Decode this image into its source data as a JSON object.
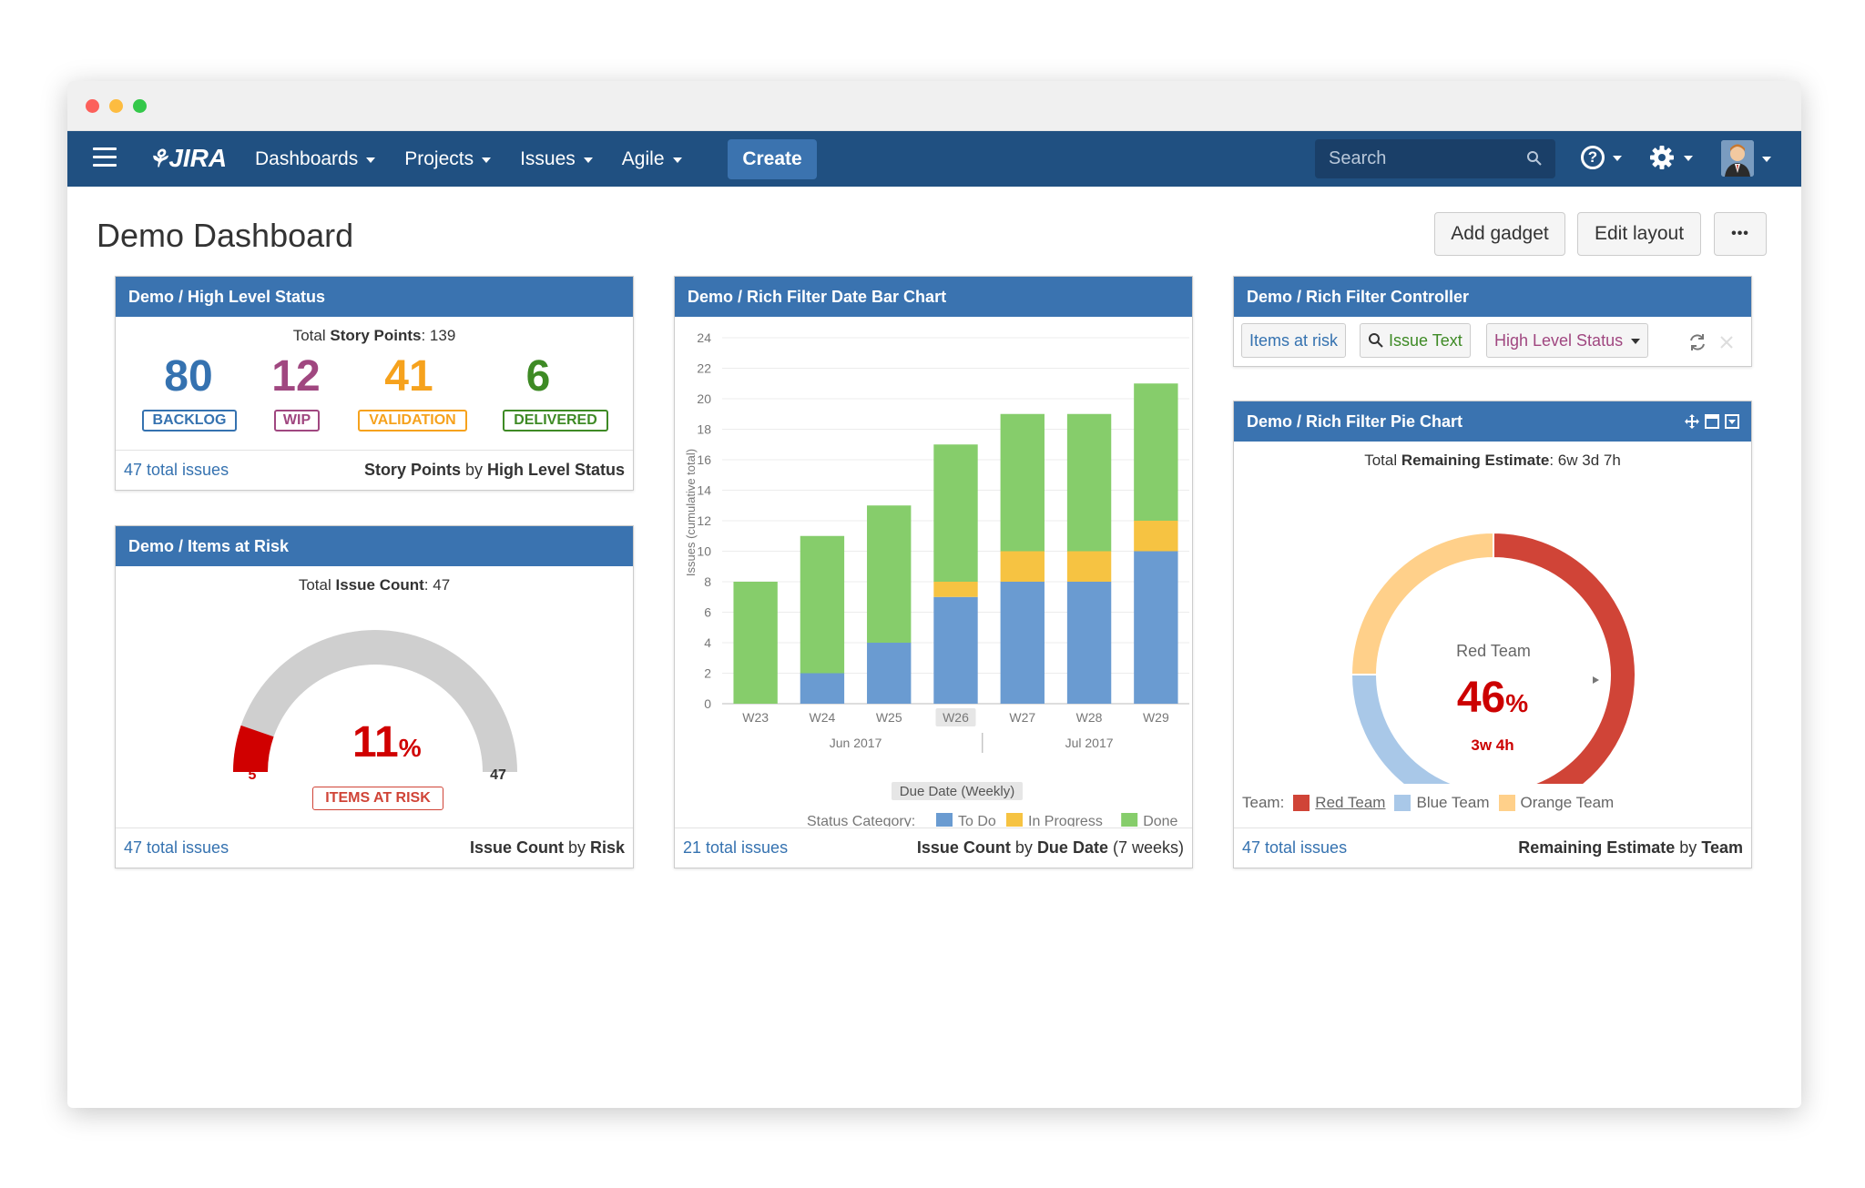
{
  "nav": {
    "logo": "JIRA",
    "items": [
      {
        "label": "Dashboards"
      },
      {
        "label": "Projects"
      },
      {
        "label": "Issues"
      },
      {
        "label": "Agile"
      }
    ],
    "create_label": "Create",
    "search_placeholder": "Search",
    "help_label": "?"
  },
  "page": {
    "title": "Demo Dashboard",
    "add_gadget": "Add gadget",
    "edit_layout": "Edit layout",
    "more": "•••"
  },
  "gadget_status": {
    "title": "Demo / High Level Status",
    "total_prefix": "Total",
    "total_label": "Story Points",
    "total_value": ": 139",
    "items": [
      {
        "value": "80",
        "label": "BACKLOG",
        "color": "#3572b0"
      },
      {
        "value": "12",
        "label": "WIP",
        "color": "#a04780"
      },
      {
        "value": "41",
        "label": "VALIDATION",
        "color": "#f6a21d"
      },
      {
        "value": "6",
        "label": "DELIVERED",
        "color": "#3e8a25"
      }
    ],
    "footer_link": "47 total issues",
    "footer_metric": "Story Points",
    "footer_by": " by ",
    "footer_group": "High Level Status"
  },
  "gadget_risk": {
    "title": "Demo / Items at Risk",
    "total_prefix": "Total",
    "total_label": "Issue Count",
    "total_value": ": 47",
    "percent": "11",
    "percent_sign": "%",
    "min_label": "5",
    "max_label": "47",
    "risk_label": "ITEMS AT RISK",
    "gauge_value": 5,
    "gauge_total": 47,
    "footer_link": "47 total issues",
    "footer_metric": "Issue Count",
    "footer_by": " by ",
    "footer_group": "Risk"
  },
  "gadget_bar": {
    "title": "Demo / Rich Filter Date Bar Chart",
    "footer_link": "21 total issues",
    "footer_metric": "Issue Count",
    "footer_by": " by ",
    "footer_group": "Due Date",
    "footer_suffix": " (7 weeks)"
  },
  "chart_data": {
    "type": "bar",
    "stacked": true,
    "categories": [
      "W23",
      "W24",
      "W25",
      "W26",
      "W27",
      "W28",
      "W29"
    ],
    "highlighted_category": "W26",
    "month_labels": [
      "Jun 2017",
      "Jul 2017"
    ],
    "series": [
      {
        "name": "To Do",
        "color": "#6a9bd1",
        "values": [
          0,
          2,
          4,
          7,
          8,
          8,
          10
        ]
      },
      {
        "name": "In Progress",
        "color": "#f6c342",
        "values": [
          0,
          0,
          0,
          1,
          2,
          2,
          2
        ]
      },
      {
        "name": "Done",
        "color": "#86cd6b",
        "values": [
          8,
          9,
          9,
          9,
          9,
          9,
          9
        ]
      }
    ],
    "ylabel": "Issues (cumulative total)",
    "xlabel": "Due Date (Weekly)",
    "ylim": [
      0,
      24
    ],
    "yticks": [
      0,
      2,
      4,
      6,
      8,
      10,
      12,
      14,
      16,
      18,
      20,
      22,
      24
    ],
    "legend_title": "Status Category:",
    "legend_position": "bottom"
  },
  "gadget_controller": {
    "title": "Demo / Rich Filter Controller",
    "filter_risk": "Items at risk",
    "filter_text": "Issue Text",
    "filter_status": "High Level Status"
  },
  "gadget_pie": {
    "title": "Demo / Rich Filter Pie Chart",
    "total_prefix": "Total",
    "total_label": "Remaining Estimate",
    "total_value": ": 6w 3d 7h",
    "center_team": "Red Team",
    "center_percent": "46",
    "center_percent_sign": "%",
    "center_time": "3w 4h",
    "legend_title": "Team:",
    "slices": [
      {
        "name": "Red Team",
        "value": 46,
        "color": "#d04437"
      },
      {
        "name": "Blue Team",
        "value": 29,
        "color": "#a9c8e8"
      },
      {
        "name": "Orange Team",
        "value": 25,
        "color": "#ffd08a"
      }
    ],
    "footer_link": "47 total issues",
    "footer_metric": "Remaining Estimate",
    "footer_by": " by ",
    "footer_group": "Team"
  }
}
